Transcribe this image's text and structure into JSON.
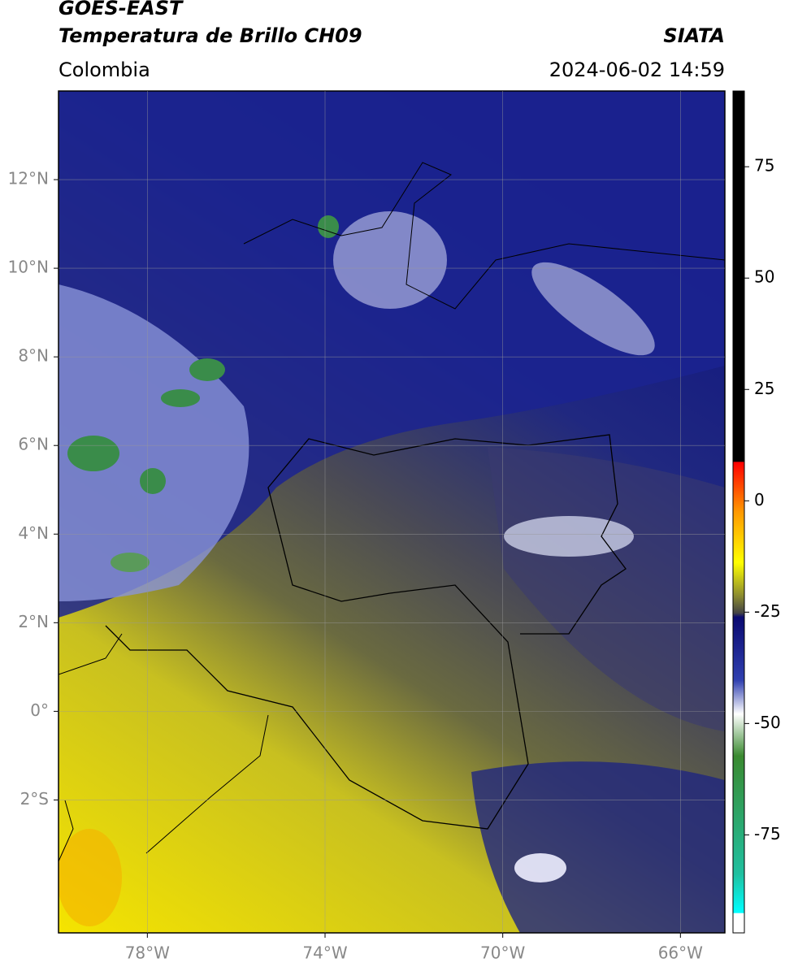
{
  "header": {
    "title": "GOES-EAST",
    "subtitle": "Temperatura de Brillo CH09",
    "source": "SIATA",
    "region": "Colombia",
    "datetime": "2024-06-02 14:59"
  },
  "map": {
    "xlim": [
      -80,
      -65
    ],
    "ylim": [
      -5,
      14
    ],
    "xticks": [
      {
        "value": -78,
        "label": "78°W"
      },
      {
        "value": -74,
        "label": "74°W"
      },
      {
        "value": -70,
        "label": "70°W"
      },
      {
        "value": -66,
        "label": "66°W"
      }
    ],
    "yticks": [
      {
        "value": -2,
        "label": "2°S"
      },
      {
        "value": 0,
        "label": "0°"
      },
      {
        "value": 2,
        "label": "2°N"
      },
      {
        "value": 4,
        "label": "4°N"
      },
      {
        "value": 6,
        "label": "6°N"
      },
      {
        "value": 8,
        "label": "8°N"
      },
      {
        "value": 10,
        "label": "10°N"
      },
      {
        "value": 12,
        "label": "12°N"
      }
    ],
    "grid": true
  },
  "colorbar": {
    "clim": [
      -97,
      92
    ],
    "ticks": [
      75,
      50,
      25,
      0,
      -25,
      -50,
      -75
    ]
  }
}
